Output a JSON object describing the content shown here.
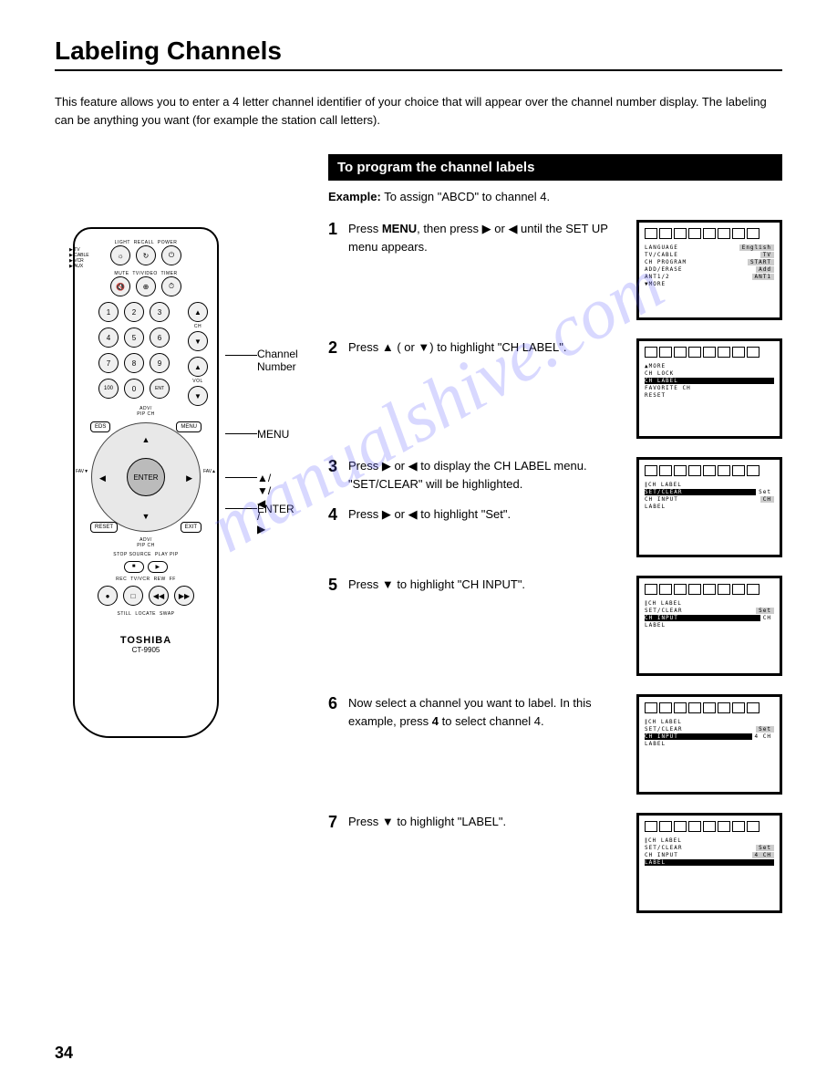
{
  "title": "Labeling Channels",
  "intro": "This feature allows you to enter a 4 letter channel identifier of your choice that will appear over the channel number display. The labeling can be anything you want (for example the station call letters).",
  "section_header": "To program the channel labels",
  "example_label": "Example:",
  "example_text": " To assign \"ABCD\" to channel 4.",
  "steps": [
    {
      "num": "1",
      "html": "Press <b>MENU</b>, then press ▶ or ◀ until the SET UP menu appears."
    },
    {
      "num": "2",
      "html": "Press ▲ ( or ▼) to highlight \"CH LABEL\"."
    },
    {
      "num": "3",
      "html": "Press ▶ or ◀ to display the CH LABEL menu.<br>\"SET/CLEAR\" will be highlighted."
    },
    {
      "num": "4",
      "html": "Press ▶ or ◀ to highlight \"Set\"."
    },
    {
      "num": "5",
      "html": "Press ▼ to highlight \"CH INPUT\"."
    },
    {
      "num": "6",
      "html": "Now select a channel you want to label. In this example, press <b>4</b> to select channel 4."
    },
    {
      "num": "7",
      "html": "Press ▼ to highlight \"LABEL\"."
    }
  ],
  "screens": [
    {
      "lines": [
        {
          "label": "LANGUAGE",
          "val": "English",
          "hl": false
        },
        {
          "label": "TV/CABLE",
          "val": "TV",
          "hl": false
        },
        {
          "label": "CH PROGRAM",
          "val": "START",
          "hl": false
        },
        {
          "label": "ADD/ERASE",
          "val": "Add",
          "hl": false
        },
        {
          "label": "ANT1/2",
          "val": "ANT1",
          "hl": false
        },
        {
          "label": "▼MORE",
          "val": "",
          "hl": false
        }
      ]
    },
    {
      "lines": [
        {
          "label": "▲MORE",
          "val": "",
          "hl": false
        },
        {
          "label": "CH LOCK",
          "val": "",
          "hl": false
        },
        {
          "label": "CH LABEL",
          "val": "",
          "hl": true
        },
        {
          "label": "FAVORITE CH",
          "val": "",
          "hl": false
        },
        {
          "label": "RESET",
          "val": "",
          "hl": false
        }
      ]
    },
    {
      "lines": [
        {
          "label": "∥CH LABEL",
          "val": "",
          "hl": false
        },
        {
          "label": "SET/CLEAR",
          "val": "Set",
          "hl": true
        },
        {
          "label": "CH INPUT",
          "val": "CH",
          "hl": false
        },
        {
          "label": "LABEL",
          "val": "",
          "hl": false
        }
      ]
    },
    {
      "lines": [
        {
          "label": "∥CH LABEL",
          "val": "",
          "hl": false
        },
        {
          "label": "SET/CLEAR",
          "val": "Set",
          "hl": false
        },
        {
          "label": "CH INPUT",
          "val": "CH",
          "hl": true
        },
        {
          "label": "LABEL",
          "val": "",
          "hl": false
        }
      ]
    },
    {
      "lines": [
        {
          "label": "∥CH LABEL",
          "val": "",
          "hl": false
        },
        {
          "label": "SET/CLEAR",
          "val": "Set",
          "hl": false
        },
        {
          "label": "CH INPUT",
          "val": "4 CH",
          "hl": true
        },
        {
          "label": "LABEL",
          "val": "",
          "hl": false
        }
      ]
    },
    {
      "lines": [
        {
          "label": "∥CH LABEL",
          "val": "",
          "hl": false
        },
        {
          "label": "SET/CLEAR",
          "val": "Set",
          "hl": false
        },
        {
          "label": "CH INPUT",
          "val": "4 CH",
          "hl": false
        },
        {
          "label": "LABEL",
          "val": "",
          "hl": true
        }
      ]
    }
  ],
  "remote": {
    "top_labels": [
      "LIGHT",
      "RECALL",
      "POWER"
    ],
    "row2_labels": [
      "MUTE",
      "TV/VIDEO",
      "TIMER"
    ],
    "side_labels": "TV\nCABLE\nVCR\nAUX",
    "numpad": [
      "1",
      "2",
      "3",
      "4",
      "5",
      "6",
      "7",
      "8",
      "9",
      "100",
      "0"
    ],
    "ch_label": "CH",
    "vol_label": "VOL",
    "chrtn_label": "CH RTN",
    "ent_label": "ENT",
    "adv_pip": "ADV/\nPIP CH",
    "eds": "EDS",
    "menu": "MENU",
    "fav": "FAV▼",
    "fav2": "FAV▲",
    "enter": "ENTER",
    "reset": "RESET",
    "exit": "EXIT",
    "stop_source": "STOP SOURCE",
    "play_pip": "PLAY PIP",
    "rec": "REC",
    "tvvcr": "TV/VCR",
    "rew": "REW",
    "ff": "FF",
    "still": "STILL",
    "locate": "LOCATE",
    "swap": "SWAP",
    "brand": "TOSHIBA",
    "model": "CT-9905"
  },
  "callouts": {
    "channel_number": "Channel\nNumber",
    "menu": "MENU",
    "arrows": "▲/▼/◀ / ▶",
    "enter": "ENTER"
  },
  "watermark": "manualshive.com",
  "page_num": "34"
}
